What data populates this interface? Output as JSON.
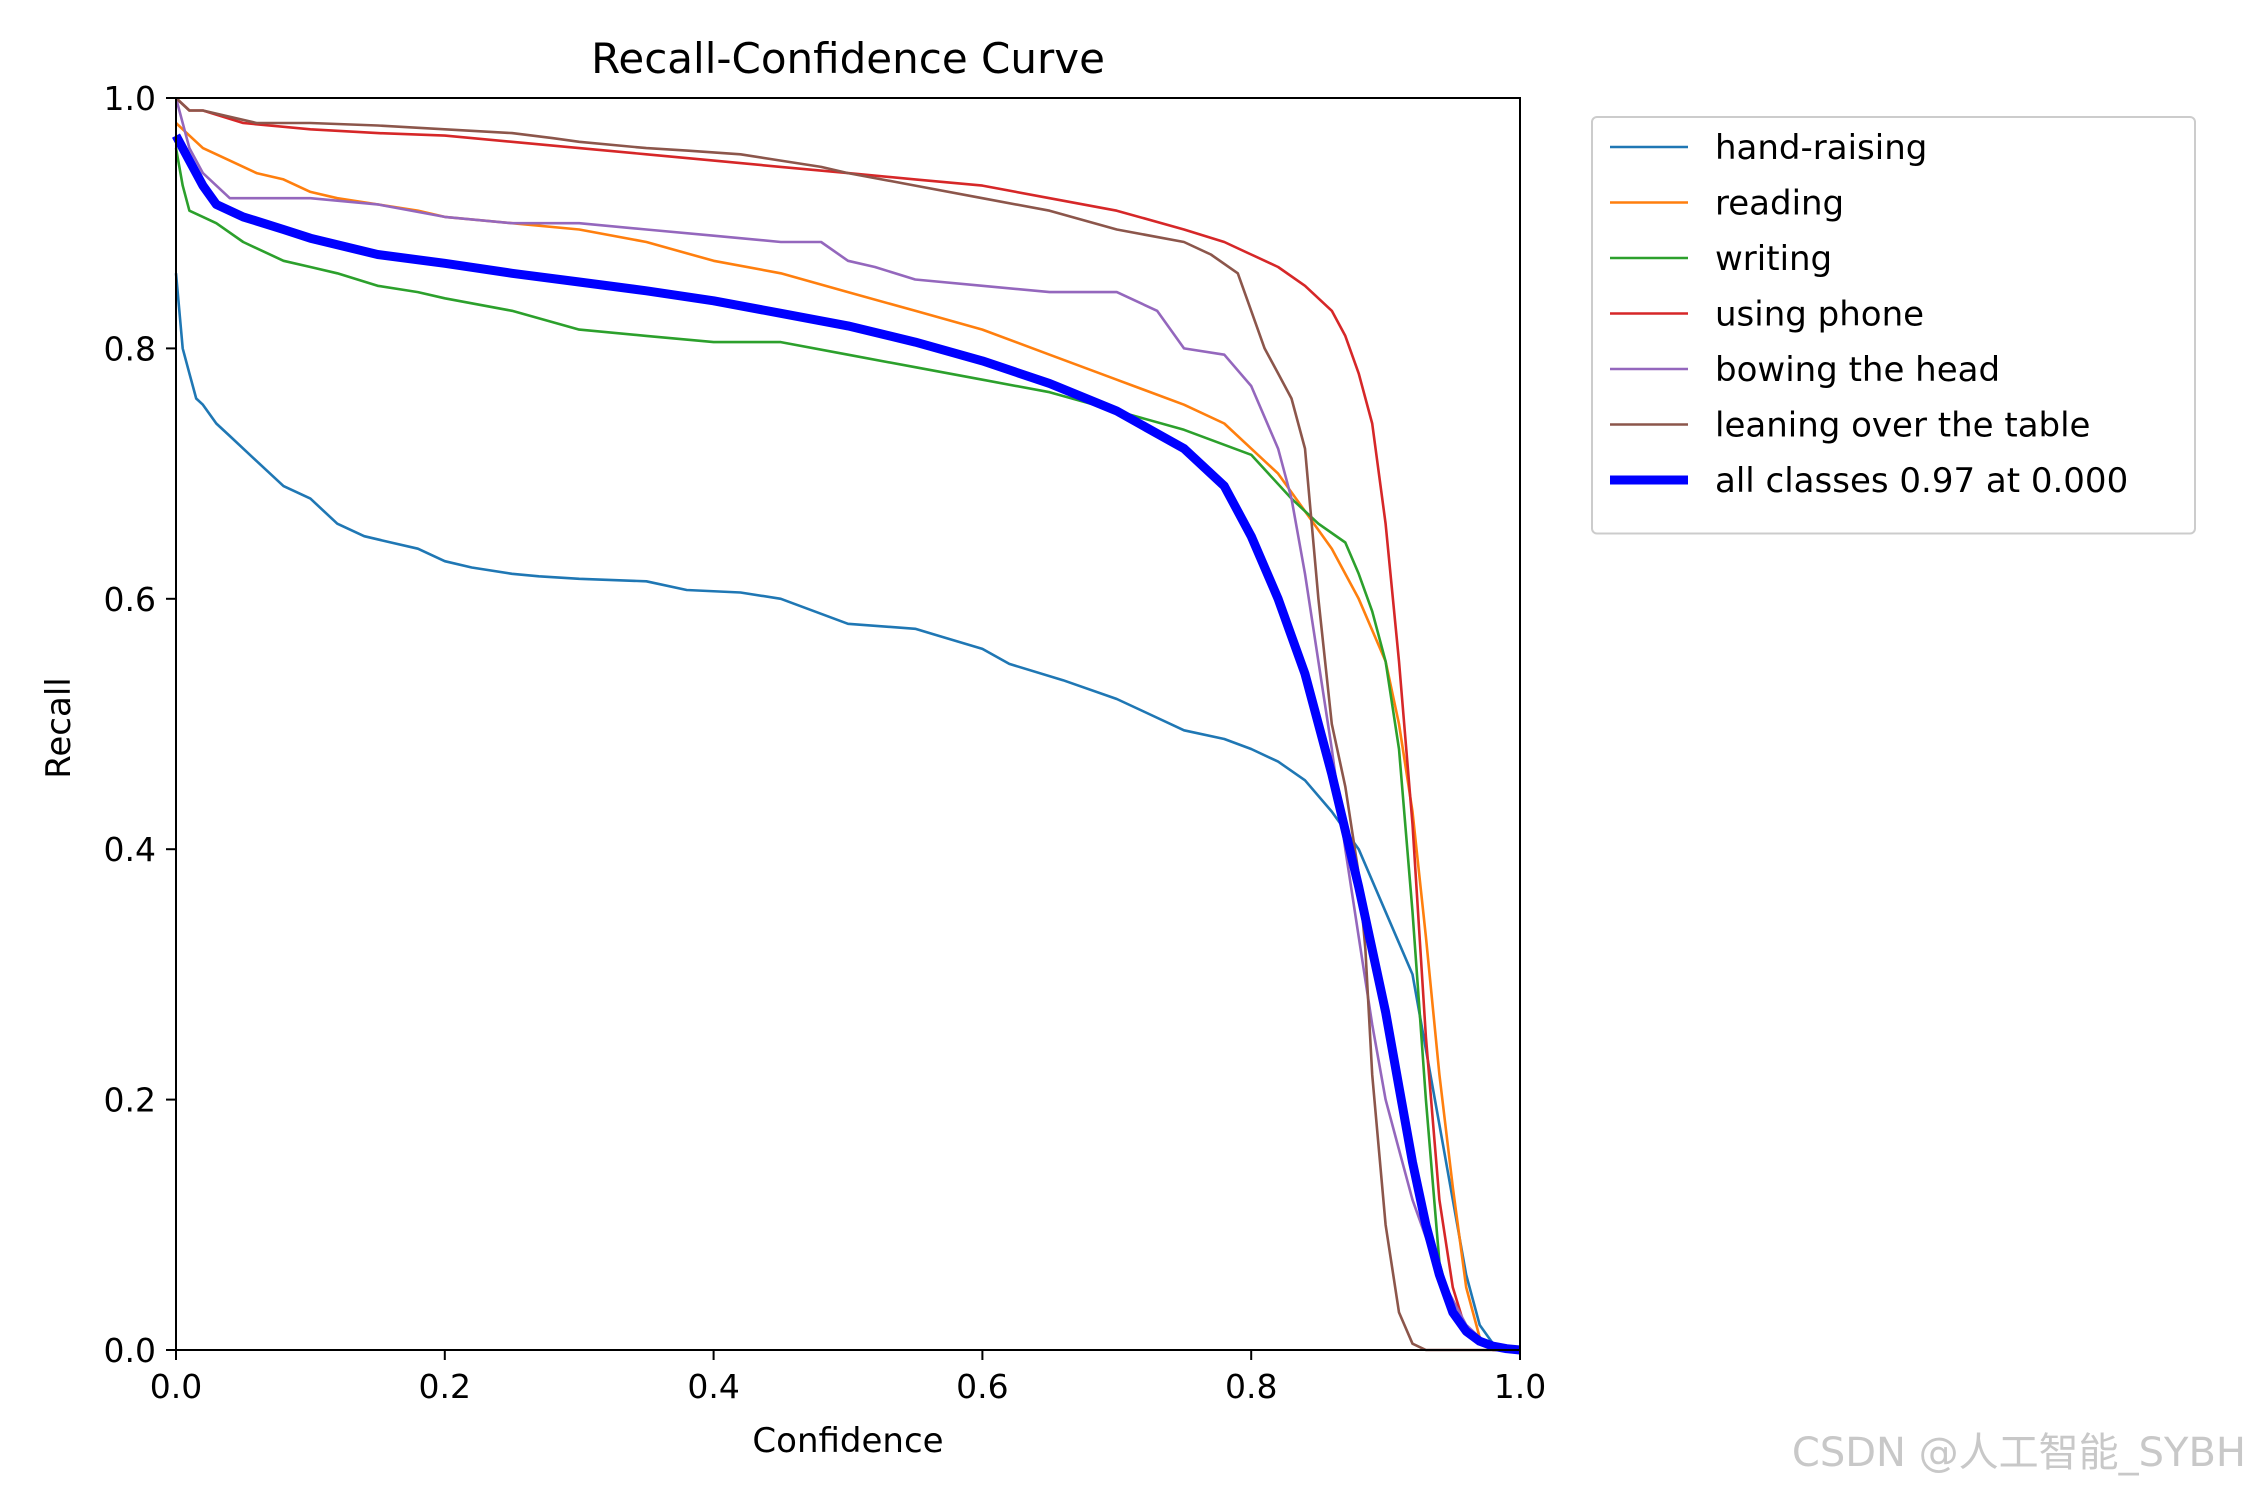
{
  "chart_data": {
    "type": "line",
    "title": "Recall-Confidence Curve",
    "xlabel": "Confidence",
    "ylabel": "Recall",
    "xlim": [
      0.0,
      1.0
    ],
    "ylim": [
      0.0,
      1.0
    ],
    "x_ticks": [
      "0.0",
      "0.2",
      "0.4",
      "0.6",
      "0.8",
      "1.0"
    ],
    "y_ticks": [
      "0.0",
      "0.2",
      "0.4",
      "0.6",
      "0.8",
      "1.0"
    ],
    "grid": false,
    "legend_position": "outside-top-right",
    "series": [
      {
        "name": "hand-raising",
        "color": "#1f77b4",
        "x": [
          0.0,
          0.005,
          0.01,
          0.015,
          0.02,
          0.03,
          0.04,
          0.05,
          0.06,
          0.08,
          0.1,
          0.12,
          0.14,
          0.16,
          0.18,
          0.2,
          0.22,
          0.25,
          0.27,
          0.3,
          0.35,
          0.38,
          0.42,
          0.45,
          0.5,
          0.55,
          0.6,
          0.62,
          0.66,
          0.7,
          0.72,
          0.75,
          0.78,
          0.8,
          0.82,
          0.84,
          0.86,
          0.88,
          0.9,
          0.92,
          0.93,
          0.94,
          0.95,
          0.96,
          0.97,
          0.98,
          1.0
        ],
        "y": [
          0.86,
          0.8,
          0.78,
          0.76,
          0.755,
          0.74,
          0.73,
          0.72,
          0.71,
          0.69,
          0.68,
          0.66,
          0.65,
          0.645,
          0.64,
          0.63,
          0.625,
          0.62,
          0.618,
          0.616,
          0.614,
          0.607,
          0.605,
          0.6,
          0.58,
          0.576,
          0.56,
          0.548,
          0.535,
          0.52,
          0.51,
          0.495,
          0.488,
          0.48,
          0.47,
          0.455,
          0.43,
          0.4,
          0.35,
          0.3,
          0.24,
          0.18,
          0.12,
          0.06,
          0.02,
          0.005,
          0.0
        ]
      },
      {
        "name": "reading",
        "color": "#ff7f0e",
        "x": [
          0.0,
          0.01,
          0.02,
          0.04,
          0.06,
          0.08,
          0.1,
          0.12,
          0.15,
          0.18,
          0.2,
          0.25,
          0.3,
          0.35,
          0.4,
          0.45,
          0.5,
          0.55,
          0.6,
          0.65,
          0.7,
          0.75,
          0.78,
          0.8,
          0.82,
          0.84,
          0.86,
          0.88,
          0.9,
          0.91,
          0.92,
          0.93,
          0.94,
          0.95,
          0.96,
          0.97,
          0.98,
          1.0
        ],
        "y": [
          0.98,
          0.97,
          0.96,
          0.95,
          0.94,
          0.935,
          0.925,
          0.92,
          0.915,
          0.91,
          0.905,
          0.9,
          0.895,
          0.885,
          0.87,
          0.86,
          0.845,
          0.83,
          0.815,
          0.795,
          0.775,
          0.755,
          0.74,
          0.72,
          0.7,
          0.67,
          0.64,
          0.6,
          0.55,
          0.5,
          0.43,
          0.33,
          0.22,
          0.13,
          0.05,
          0.01,
          0.0,
          0.0
        ]
      },
      {
        "name": "writing",
        "color": "#2ca02c",
        "x": [
          0.0,
          0.005,
          0.01,
          0.02,
          0.03,
          0.05,
          0.08,
          0.1,
          0.12,
          0.15,
          0.18,
          0.2,
          0.25,
          0.3,
          0.35,
          0.4,
          0.45,
          0.5,
          0.55,
          0.6,
          0.65,
          0.7,
          0.75,
          0.8,
          0.83,
          0.85,
          0.87,
          0.88,
          0.89,
          0.9,
          0.91,
          0.92,
          0.93,
          0.94,
          0.95,
          0.96,
          0.97,
          0.98,
          1.0
        ],
        "y": [
          0.96,
          0.93,
          0.91,
          0.905,
          0.9,
          0.885,
          0.87,
          0.865,
          0.86,
          0.85,
          0.845,
          0.84,
          0.83,
          0.815,
          0.81,
          0.805,
          0.805,
          0.795,
          0.785,
          0.775,
          0.765,
          0.75,
          0.735,
          0.715,
          0.68,
          0.66,
          0.645,
          0.62,
          0.59,
          0.55,
          0.48,
          0.35,
          0.2,
          0.07,
          0.03,
          0.015,
          0.005,
          0.0,
          0.0
        ]
      },
      {
        "name": "using phone",
        "color": "#d62728",
        "x": [
          0.0,
          0.01,
          0.02,
          0.05,
          0.1,
          0.15,
          0.2,
          0.25,
          0.3,
          0.35,
          0.4,
          0.45,
          0.5,
          0.55,
          0.6,
          0.65,
          0.7,
          0.75,
          0.78,
          0.8,
          0.82,
          0.84,
          0.86,
          0.87,
          0.88,
          0.89,
          0.9,
          0.91,
          0.92,
          0.93,
          0.94,
          0.95,
          0.96,
          0.97,
          0.98,
          1.0
        ],
        "y": [
          1.0,
          0.99,
          0.99,
          0.98,
          0.975,
          0.972,
          0.97,
          0.965,
          0.96,
          0.955,
          0.95,
          0.945,
          0.94,
          0.935,
          0.93,
          0.92,
          0.91,
          0.895,
          0.885,
          0.875,
          0.865,
          0.85,
          0.83,
          0.81,
          0.78,
          0.74,
          0.66,
          0.55,
          0.42,
          0.25,
          0.12,
          0.05,
          0.015,
          0.005,
          0.0,
          0.0
        ]
      },
      {
        "name": "bowing the head",
        "color": "#9467bd",
        "x": [
          0.0,
          0.01,
          0.02,
          0.03,
          0.04,
          0.08,
          0.1,
          0.15,
          0.2,
          0.25,
          0.3,
          0.35,
          0.4,
          0.45,
          0.48,
          0.5,
          0.52,
          0.55,
          0.6,
          0.65,
          0.7,
          0.73,
          0.75,
          0.78,
          0.8,
          0.82,
          0.83,
          0.84,
          0.85,
          0.86,
          0.87,
          0.88,
          0.89,
          0.9,
          0.91,
          0.92,
          0.93,
          0.94,
          0.95,
          0.96,
          0.97,
          0.98,
          1.0
        ],
        "y": [
          1.0,
          0.96,
          0.94,
          0.93,
          0.92,
          0.92,
          0.92,
          0.915,
          0.905,
          0.9,
          0.9,
          0.895,
          0.89,
          0.885,
          0.885,
          0.87,
          0.865,
          0.855,
          0.85,
          0.845,
          0.845,
          0.83,
          0.8,
          0.795,
          0.77,
          0.72,
          0.68,
          0.62,
          0.55,
          0.48,
          0.4,
          0.33,
          0.26,
          0.2,
          0.16,
          0.12,
          0.09,
          0.06,
          0.04,
          0.02,
          0.01,
          0.0,
          0.0
        ]
      },
      {
        "name": "leaning over the table",
        "color": "#8c564b",
        "x": [
          0.0,
          0.01,
          0.02,
          0.04,
          0.06,
          0.1,
          0.15,
          0.2,
          0.25,
          0.28,
          0.3,
          0.35,
          0.38,
          0.42,
          0.45,
          0.48,
          0.5,
          0.55,
          0.6,
          0.65,
          0.7,
          0.75,
          0.77,
          0.79,
          0.8,
          0.81,
          0.82,
          0.83,
          0.84,
          0.85,
          0.86,
          0.87,
          0.88,
          0.885,
          0.89,
          0.9,
          0.91,
          0.92,
          0.93,
          1.0
        ],
        "y": [
          1.0,
          0.99,
          0.99,
          0.985,
          0.98,
          0.98,
          0.978,
          0.975,
          0.972,
          0.968,
          0.965,
          0.96,
          0.958,
          0.955,
          0.95,
          0.945,
          0.94,
          0.93,
          0.92,
          0.91,
          0.895,
          0.885,
          0.875,
          0.86,
          0.83,
          0.8,
          0.78,
          0.76,
          0.72,
          0.6,
          0.5,
          0.45,
          0.38,
          0.32,
          0.22,
          0.1,
          0.03,
          0.005,
          0.0,
          0.0
        ]
      },
      {
        "name": "all classes 0.97 at 0.000",
        "color": "#0000ff",
        "bold": true,
        "x": [
          0.0,
          0.01,
          0.02,
          0.03,
          0.05,
          0.08,
          0.1,
          0.15,
          0.2,
          0.25,
          0.3,
          0.35,
          0.4,
          0.45,
          0.5,
          0.55,
          0.6,
          0.65,
          0.7,
          0.75,
          0.78,
          0.8,
          0.82,
          0.84,
          0.86,
          0.88,
          0.9,
          0.91,
          0.92,
          0.93,
          0.94,
          0.95,
          0.96,
          0.97,
          0.98,
          0.99,
          1.0
        ],
        "y": [
          0.97,
          0.95,
          0.93,
          0.915,
          0.905,
          0.895,
          0.888,
          0.875,
          0.868,
          0.86,
          0.853,
          0.846,
          0.838,
          0.828,
          0.818,
          0.805,
          0.79,
          0.772,
          0.75,
          0.72,
          0.69,
          0.65,
          0.6,
          0.54,
          0.46,
          0.37,
          0.27,
          0.21,
          0.15,
          0.1,
          0.06,
          0.03,
          0.015,
          0.007,
          0.003,
          0.001,
          0.0
        ]
      }
    ]
  },
  "watermark": "CSDN @人工智能_SYBH"
}
